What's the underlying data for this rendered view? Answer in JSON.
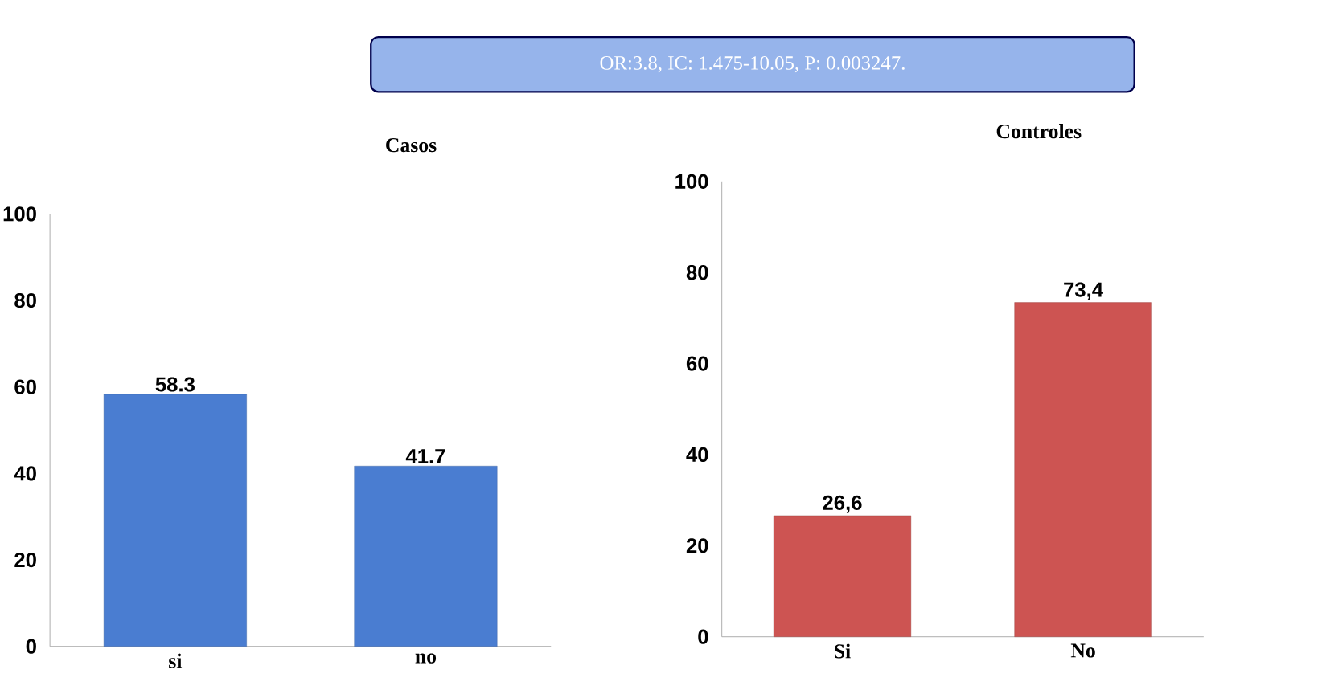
{
  "chart_data": [
    {
      "type": "bar",
      "title": "Casos",
      "categories": [
        "si",
        "no"
      ],
      "values": [
        58.3,
        41.7
      ],
      "color": "#4a7dd1",
      "value_labels": [
        "58.3",
        "41.7"
      ],
      "ylim": [
        0,
        100
      ],
      "yticks": [
        0,
        20,
        40,
        60,
        80,
        100
      ],
      "annotations": [
        "OR:3.8,  IC: 1.475-10.05, P: 0.003247."
      ]
    },
    {
      "type": "bar",
      "title": "Controles",
      "categories": [
        "Si",
        "No"
      ],
      "values": [
        26.6,
        73.4
      ],
      "color": "#cd5452",
      "value_labels": [
        "26,6",
        "73,4"
      ],
      "ylim": [
        0,
        100
      ],
      "yticks": [
        0,
        20,
        40,
        60,
        80,
        100
      ]
    }
  ]
}
